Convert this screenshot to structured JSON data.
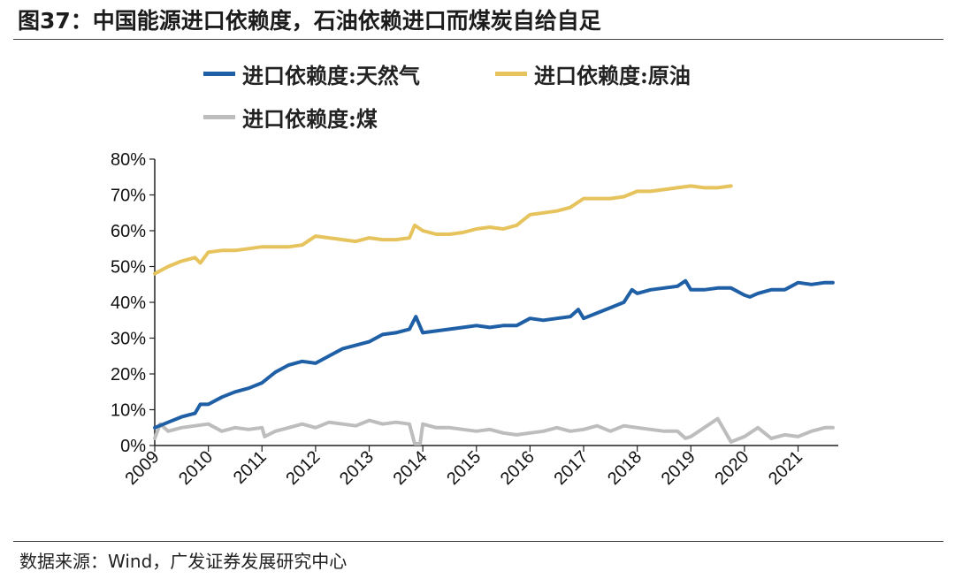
{
  "figure": {
    "title": "图37：中国能源进口依赖度，石油依赖进口而煤炭自给自足",
    "source": "数据来源：Wind，广发证券发展研究中心"
  },
  "chart_data": {
    "type": "line",
    "title": "图37：中国能源进口依赖度，石油依赖进口而煤炭自给自足",
    "xlabel": "",
    "ylabel": "",
    "x_ticks": [
      "2009",
      "2010",
      "2011",
      "2012",
      "2013",
      "2014",
      "2015",
      "2016",
      "2017",
      "2018",
      "2019",
      "2020",
      "2021"
    ],
    "y_ticks": [
      "0%",
      "10%",
      "20%",
      "30%",
      "40%",
      "50%",
      "60%",
      "70%",
      "80%"
    ],
    "ylim": [
      0,
      80
    ],
    "xlim": [
      2009,
      2021.75
    ],
    "y_unit": "%",
    "grid": false,
    "legend_position": "top",
    "series": [
      {
        "name": "进口依赖度:天然气",
        "color": "#1f5fa6",
        "x": [
          2009.0,
          2009.25,
          2009.5,
          2009.75,
          2009.85,
          2010.0,
          2010.25,
          2010.5,
          2010.75,
          2011.0,
          2011.25,
          2011.5,
          2011.75,
          2012.0,
          2012.25,
          2012.5,
          2012.75,
          2013.0,
          2013.25,
          2013.5,
          2013.75,
          2013.87,
          2014.0,
          2014.25,
          2014.5,
          2014.75,
          2015.0,
          2015.25,
          2015.5,
          2015.75,
          2016.0,
          2016.25,
          2016.5,
          2016.75,
          2016.9,
          2017.0,
          2017.25,
          2017.5,
          2017.75,
          2017.9,
          2018.0,
          2018.25,
          2018.5,
          2018.75,
          2018.9,
          2019.0,
          2019.25,
          2019.5,
          2019.75,
          2020.0,
          2020.1,
          2020.25,
          2020.5,
          2020.75,
          2021.0,
          2021.25,
          2021.5,
          2021.65
        ],
        "values": [
          5,
          6.5,
          8,
          9,
          11.5,
          11.5,
          13.5,
          15,
          16,
          17.5,
          20.5,
          22.5,
          23.5,
          23,
          25,
          27,
          28,
          29,
          31,
          31.5,
          32.5,
          36,
          31.5,
          32,
          32.5,
          33,
          33.5,
          33,
          33.5,
          33.5,
          35.5,
          35,
          35.5,
          36,
          38,
          35.5,
          37,
          38.5,
          40,
          43.5,
          42.5,
          43.5,
          44,
          44.5,
          46,
          43.5,
          43.5,
          44,
          44,
          42,
          41.5,
          42.5,
          43.5,
          43.5,
          45.5,
          45,
          45.5,
          45.5
        ]
      },
      {
        "name": "进口依赖度:原油",
        "color": "#e6c35c",
        "x": [
          2009.0,
          2009.25,
          2009.5,
          2009.75,
          2009.85,
          2010.0,
          2010.25,
          2010.5,
          2010.75,
          2011.0,
          2011.25,
          2011.5,
          2011.75,
          2012.0,
          2012.25,
          2012.5,
          2012.75,
          2013.0,
          2013.25,
          2013.5,
          2013.75,
          2013.85,
          2014.0,
          2014.25,
          2014.5,
          2014.75,
          2015.0,
          2015.25,
          2015.5,
          2015.75,
          2016.0,
          2016.25,
          2016.5,
          2016.75,
          2017.0,
          2017.25,
          2017.5,
          2017.75,
          2018.0,
          2018.25,
          2018.5,
          2018.75,
          2019.0,
          2019.25,
          2019.5,
          2019.75
        ],
        "values": [
          48,
          50,
          51.5,
          52.5,
          51,
          54,
          54.5,
          54.5,
          55,
          55.5,
          55.5,
          55.5,
          56,
          58.5,
          58,
          57.5,
          57,
          58,
          57.5,
          57.5,
          58,
          61.5,
          60,
          59,
          59,
          59.5,
          60.5,
          61,
          60.5,
          61.5,
          64.5,
          65,
          65.5,
          66.5,
          69,
          69,
          69,
          69.5,
          71,
          71,
          71.5,
          72,
          72.5,
          72,
          72,
          72.5
        ]
      },
      {
        "name": "进口依赖度:煤",
        "color": "#bdbdbd",
        "x": [
          2009.0,
          2009.1,
          2009.25,
          2009.5,
          2009.75,
          2010.0,
          2010.25,
          2010.5,
          2010.75,
          2011.0,
          2011.05,
          2011.25,
          2011.5,
          2011.75,
          2012.0,
          2012.25,
          2012.5,
          2012.75,
          2013.0,
          2013.25,
          2013.5,
          2013.75,
          2013.85,
          2013.95,
          2014.0,
          2014.25,
          2014.5,
          2014.75,
          2015.0,
          2015.25,
          2015.5,
          2015.75,
          2016.0,
          2016.25,
          2016.5,
          2016.75,
          2017.0,
          2017.25,
          2017.5,
          2017.75,
          2018.0,
          2018.25,
          2018.5,
          2018.75,
          2018.9,
          2019.0,
          2019.25,
          2019.5,
          2019.75,
          2020.0,
          2020.25,
          2020.5,
          2020.75,
          2021.0,
          2021.25,
          2021.5,
          2021.65
        ],
        "values": [
          2,
          6,
          4,
          5,
          5.5,
          6,
          4,
          5,
          4.5,
          5,
          2.5,
          4,
          5,
          6,
          5,
          6.5,
          6,
          5.5,
          7,
          6,
          6.5,
          6,
          0.5,
          0.5,
          6,
          5,
          5,
          4.5,
          4,
          4.5,
          3.5,
          3,
          3.5,
          4,
          5,
          4,
          4.5,
          5.5,
          4,
          5.5,
          5,
          4.5,
          4,
          4,
          2,
          2.5,
          5,
          7.5,
          1,
          2.5,
          5,
          2,
          3,
          2.5,
          4,
          5,
          5
        ]
      }
    ]
  }
}
